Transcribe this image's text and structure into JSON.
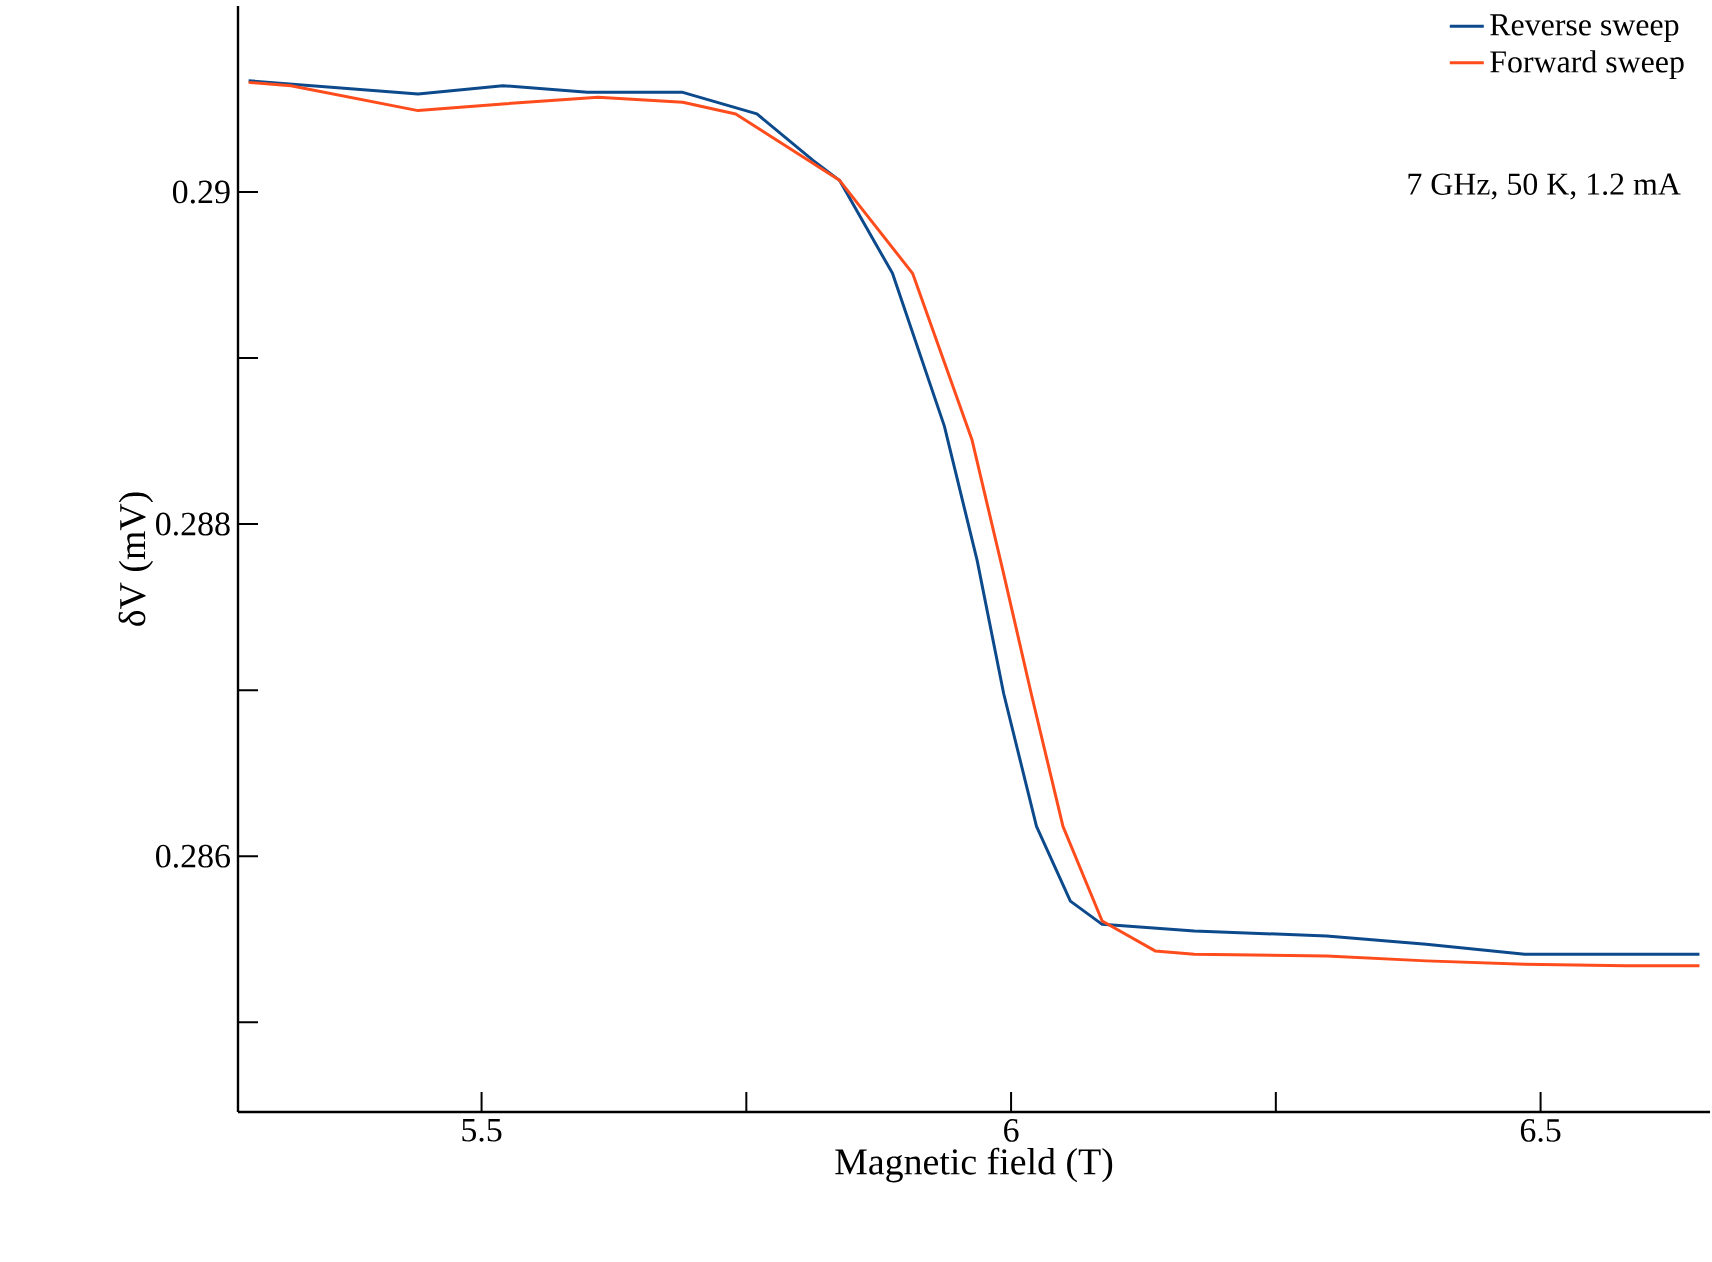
{
  "chart_data": {
    "type": "line",
    "xlabel": "Magnetic field (T)",
    "ylabel": "δV (mV)",
    "xlim": [
      5.27,
      6.66
    ],
    "ylim": [
      0.28446,
      0.29112
    ],
    "xticks": [
      5.5,
      {
        "value": 5.75,
        "label": null
      },
      6,
      {
        "value": 6.25,
        "label": null
      },
      6.5
    ],
    "yticks": [
      {
        "value": 0.285,
        "label": null
      },
      0.286,
      {
        "value": 0.287,
        "label": null
      },
      0.288,
      {
        "value": 0.289,
        "label": null
      },
      {
        "value": 0.29,
        "label": "0.29"
      }
    ],
    "legend": "top right",
    "grid": false,
    "marker": "none",
    "line_style": "solid",
    "annotations": [
      "7 GHz, 50 K, 1.2 mA"
    ],
    "series": [
      {
        "name": "Reverse sweep",
        "color": "#0c4a8c",
        "x": [
          5.28,
          5.44,
          5.52,
          5.6,
          5.69,
          5.76,
          5.813,
          5.838,
          5.888,
          5.937,
          5.968,
          5.993,
          6.024,
          6.056,
          6.086,
          6.173,
          6.298,
          6.392,
          6.485,
          6.58,
          6.65
        ],
        "values": [
          0.29067,
          0.29059,
          0.29064,
          0.2906,
          0.2906,
          0.29047,
          0.29019,
          0.29007,
          0.28951,
          0.28859,
          0.28778,
          0.28698,
          0.28618,
          0.28573,
          0.28559,
          0.28555,
          0.28552,
          0.28547,
          0.28541,
          0.28541,
          0.28541
        ]
      },
      {
        "name": "Forward sweep",
        "color": "#ff4c1c",
        "x": [
          5.28,
          5.32,
          5.44,
          5.52,
          5.61,
          5.69,
          5.74,
          5.838,
          5.907,
          5.963,
          5.993,
          6.019,
          6.049,
          6.086,
          6.136,
          6.173,
          6.298,
          6.392,
          6.485,
          6.58,
          6.65
        ],
        "values": [
          0.29066,
          0.29064,
          0.29049,
          0.29053,
          0.29057,
          0.29054,
          0.29047,
          0.29007,
          0.28951,
          0.28851,
          0.2877,
          0.28698,
          0.28618,
          0.28561,
          0.28543,
          0.28541,
          0.2854,
          0.28537,
          0.28535,
          0.28534,
          0.28534
        ]
      }
    ]
  }
}
